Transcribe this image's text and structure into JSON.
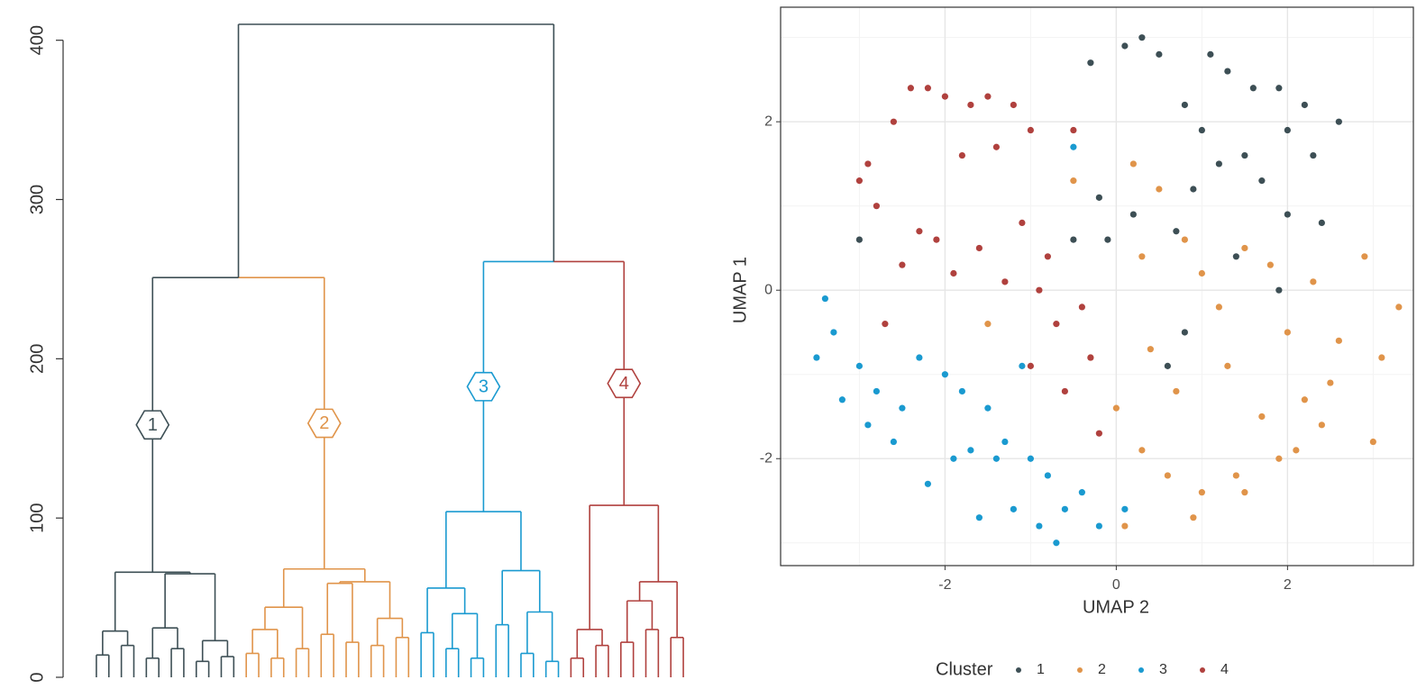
{
  "chart_data": [
    {
      "type": "dendrogram",
      "ylim": [
        0,
        410
      ],
      "yticks": [
        0,
        100,
        200,
        300,
        400
      ],
      "root": 410,
      "merges": [
        251,
        261
      ],
      "link_color": "#3d4f55",
      "clusters": [
        {
          "name": "1",
          "color": "#3d4f55",
          "tree": [
            66,
            [
              29,
              [
                14,
                0,
                0
              ],
              [
                20,
                0,
                0
              ]
            ],
            [
              65,
              [
                31,
                [
                  12,
                  0,
                  0
                ],
                [
                  18,
                  0,
                  0
                ]
              ],
              [
                23,
                [
                  10,
                  0,
                  0
                ],
                [
                  13,
                  0,
                  0
                ]
              ]
            ]
          ]
        },
        {
          "name": "2",
          "color": "#e0944a",
          "tree": [
            68,
            [
              44,
              [
                30,
                [
                  15,
                  0,
                  0
                ],
                [
                  12,
                  0,
                  0
                ]
              ],
              [
                18,
                0,
                0
              ]
            ],
            [
              60,
              [
                59,
                [
                  27,
                  0,
                  0
                ],
                [
                  22,
                  0,
                  0
                ]
              ],
              [
                37,
                [
                  20,
                  0,
                  0
                ],
                [
                  25,
                  0,
                  0
                ]
              ]
            ]
          ]
        },
        {
          "name": "3",
          "color": "#1a9ad0",
          "tree": [
            104,
            [
              56,
              [
                28,
                0,
                0
              ],
              [
                40,
                [
                  18,
                  0,
                  0
                ],
                [
                  12,
                  0,
                  0
                ]
              ]
            ],
            [
              67,
              [
                33,
                0,
                0
              ],
              [
                41,
                [
                  15,
                  0,
                  0
                ],
                [
                  10,
                  0,
                  0
                ]
              ]
            ]
          ]
        },
        {
          "name": "4",
          "color": "#b0413e",
          "tree": [
            108,
            [
              30,
              [
                12,
                0,
                0
              ],
              [
                20,
                0,
                0
              ]
            ],
            [
              60,
              [
                48,
                [
                  22,
                  0,
                  0
                ],
                [
                  30,
                  0,
                  0
                ]
              ],
              [
                25,
                0,
                0
              ]
            ]
          ]
        }
      ]
    },
    {
      "type": "scatter",
      "x_label": "UMAP 2",
      "y_label": "UMAP 1",
      "legend_title": "Cluster",
      "legend": "bottom",
      "grid": true,
      "xlim": [
        -3.92,
        3.47
      ],
      "ylim": [
        -3.27,
        3.36
      ],
      "xticks": [
        -2,
        0,
        2
      ],
      "yticks": [
        -2,
        0,
        2
      ],
      "xminor": [
        -3,
        -1,
        1,
        3
      ],
      "yminor": [
        -3,
        -1,
        1,
        3
      ],
      "series": [
        {
          "name": "1",
          "color": "#3d4f55",
          "x": [
            0.1,
            0.3,
            0.5,
            -0.3,
            1.1,
            1.3,
            1.6,
            1.9,
            2.2,
            2.6,
            0.8,
            1.0,
            1.5,
            2.0,
            2.3,
            1.2,
            1.7,
            0.9,
            2.4,
            -0.2,
            0.2,
            -0.5,
            -0.1,
            0.7,
            1.4,
            2.0,
            0.8,
            0.6,
            -3.0,
            1.9
          ],
          "values": [
            2.9,
            3.0,
            2.8,
            2.7,
            2.8,
            2.6,
            2.4,
            2.4,
            2.2,
            2.0,
            2.2,
            1.9,
            1.6,
            1.9,
            1.6,
            1.5,
            1.3,
            1.2,
            0.8,
            1.1,
            0.9,
            0.6,
            0.6,
            0.7,
            0.4,
            0.9,
            -0.5,
            -0.9,
            0.6,
            0.0
          ]
        },
        {
          "name": "2",
          "color": "#e0944a",
          "x": [
            0.2,
            0.5,
            0.8,
            1.0,
            1.2,
            1.5,
            1.8,
            2.0,
            2.3,
            2.6,
            2.9,
            3.1,
            3.3,
            0.4,
            0.7,
            1.3,
            1.7,
            2.2,
            2.5,
            3.0,
            -0.3,
            0.0,
            0.3,
            0.6,
            1.0,
            1.4,
            1.9,
            2.4,
            0.1,
            0.9,
            1.5,
            2.1,
            -0.5,
            0.3,
            -1.5
          ],
          "values": [
            1.5,
            1.2,
            0.6,
            0.2,
            -0.2,
            0.5,
            0.3,
            -0.5,
            0.1,
            -0.6,
            0.4,
            -0.8,
            -0.2,
            -0.7,
            -1.2,
            -0.9,
            -1.5,
            -1.3,
            -1.1,
            -1.8,
            -0.8,
            -1.4,
            -1.9,
            -2.2,
            -2.4,
            -2.2,
            -2.0,
            -1.6,
            -2.8,
            -2.7,
            -2.4,
            -1.9,
            1.3,
            0.4,
            -0.4
          ]
        },
        {
          "name": "3",
          "color": "#1a9ad0",
          "x": [
            -3.4,
            -3.3,
            -3.0,
            -2.8,
            -3.5,
            -3.2,
            -2.9,
            -2.6,
            -2.3,
            -2.0,
            -1.8,
            -1.5,
            -1.3,
            -1.0,
            -0.8,
            -0.6,
            -0.4,
            -0.2,
            0.1,
            -2.2,
            -1.9,
            -1.6,
            -1.2,
            -0.9,
            -0.7,
            -1.7,
            -1.4,
            -2.5,
            -0.5,
            -1.1
          ],
          "values": [
            -0.1,
            -0.5,
            -0.9,
            -1.2,
            -0.8,
            -1.3,
            -1.6,
            -1.8,
            -0.8,
            -1.0,
            -1.2,
            -1.4,
            -1.8,
            -2.0,
            -2.2,
            -2.6,
            -2.4,
            -2.8,
            -2.6,
            -2.3,
            -2.0,
            -2.7,
            -2.6,
            -2.8,
            -3.0,
            -1.9,
            -2.0,
            -1.4,
            1.7,
            -0.9
          ]
        },
        {
          "name": "4",
          "color": "#b0413e",
          "x": [
            -2.4,
            -2.2,
            -2.0,
            -1.7,
            -1.5,
            -1.2,
            -1.0,
            -2.6,
            -2.9,
            -3.0,
            -2.8,
            -1.8,
            -1.4,
            -2.3,
            -2.1,
            -1.6,
            -1.1,
            -0.8,
            -0.5,
            -2.5,
            -1.9,
            -1.3,
            -0.9,
            -0.7,
            -0.4,
            -0.3,
            -1.0,
            -0.6,
            -2.7,
            -0.2
          ],
          "values": [
            2.4,
            2.4,
            2.3,
            2.2,
            2.3,
            2.2,
            1.9,
            2.0,
            1.5,
            1.3,
            1.0,
            1.6,
            1.7,
            0.7,
            0.6,
            0.5,
            0.8,
            0.4,
            1.9,
            0.3,
            0.2,
            0.1,
            0.0,
            -0.4,
            -0.2,
            -0.8,
            -0.9,
            -1.2,
            -0.4,
            -1.7
          ]
        }
      ]
    }
  ]
}
